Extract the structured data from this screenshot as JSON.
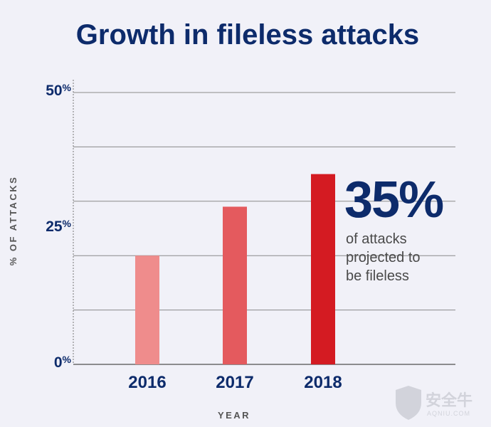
{
  "chart_data": {
    "type": "bar",
    "title": "Growth in fileless attacks",
    "xlabel": "YEAR",
    "ylabel": "% OF ATTACKS",
    "categories": [
      "2016",
      "2017",
      "2018"
    ],
    "values": [
      20,
      29,
      35
    ],
    "ylim": [
      0,
      50
    ],
    "yticks": [
      {
        "value": 0,
        "label": "0%"
      },
      {
        "value": 25,
        "label": "25%"
      },
      {
        "value": 50,
        "label": "50%"
      }
    ],
    "gridlines": [
      10,
      20,
      30,
      40,
      50
    ],
    "grid": true,
    "bar_colors": [
      "#ef8c8c",
      "#e45a5e",
      "#d41b22"
    ],
    "annotation": {
      "value_label": "35%",
      "text_lines": [
        "of attacks",
        "projected to",
        "be fileless"
      ]
    }
  },
  "colors": {
    "title": "#0d2b6b",
    "axis_labels": "#555555",
    "tick_labels": "#0d2b6b",
    "grid": "#8a8a8a",
    "annotation_value": "#0d2b6b",
    "annotation_text": "#4a4a4a"
  },
  "watermark": {
    "text_cn": "安全牛",
    "text_en": "AQNIU.COM"
  }
}
